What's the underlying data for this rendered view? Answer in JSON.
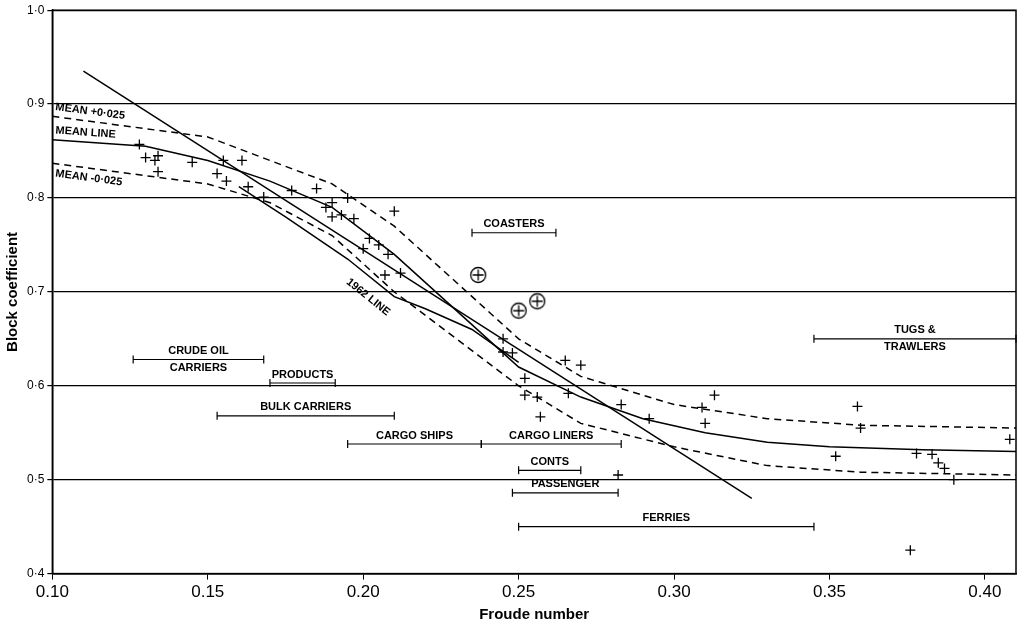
{
  "chart_data": {
    "type": "scatter",
    "xlabel": "Froude number",
    "ylabel": "Block coefficient",
    "xlim": [
      0.1,
      0.41
    ],
    "ylim": [
      0.4,
      1.0
    ],
    "xticks": [
      {
        "value": 0.1,
        "label": "0.10"
      },
      {
        "value": 0.15,
        "label": "0.15"
      },
      {
        "value": 0.2,
        "label": "0.20"
      },
      {
        "value": 0.25,
        "label": "0.25"
      },
      {
        "value": 0.3,
        "label": "0.30"
      },
      {
        "value": 0.35,
        "label": "0.35"
      },
      {
        "value": 0.4,
        "label": "0.40"
      }
    ],
    "yticks": [
      {
        "value": 0.4,
        "label": "0·4"
      },
      {
        "value": 0.5,
        "label": "0·5"
      },
      {
        "value": 0.6,
        "label": "0·6"
      },
      {
        "value": 0.7,
        "label": "0·7"
      },
      {
        "value": 0.8,
        "label": "0·8"
      },
      {
        "value": 0.9,
        "label": "0·9"
      },
      {
        "value": 1.0,
        "label": "1·0"
      }
    ],
    "grid": "y",
    "color": "#000000",
    "series": [
      {
        "type": "scatter",
        "marker": "cross",
        "x": [
          0.128,
          0.13,
          0.133,
          0.134,
          0.134,
          0.145,
          0.153,
          0.155,
          0.156,
          0.161,
          0.163,
          0.168,
          0.177,
          0.185,
          0.188,
          0.19,
          0.19,
          0.193,
          0.195,
          0.197,
          0.2,
          0.202,
          0.205,
          0.207,
          0.208,
          0.21,
          0.212,
          0.245,
          0.245,
          0.248,
          0.252,
          0.252,
          0.256,
          0.257,
          0.265,
          0.266,
          0.27,
          0.282,
          0.283,
          0.292,
          0.309,
          0.31,
          0.313,
          0.352,
          0.359,
          0.36,
          0.376,
          0.378,
          0.383,
          0.385,
          0.387,
          0.39,
          0.408
        ],
        "values": [
          0.857,
          0.843,
          0.84,
          0.845,
          0.828,
          0.838,
          0.826,
          0.84,
          0.818,
          0.84,
          0.812,
          0.801,
          0.808,
          0.81,
          0.79,
          0.78,
          0.795,
          0.782,
          0.8,
          0.778,
          0.746,
          0.757,
          0.75,
          0.718,
          0.74,
          0.786,
          0.72,
          0.65,
          0.636,
          0.635,
          0.608,
          0.59,
          0.588,
          0.567,
          0.627,
          0.592,
          0.622,
          0.505,
          0.58,
          0.565,
          0.577,
          0.56,
          0.59,
          0.525,
          0.578,
          0.555,
          0.425,
          0.528,
          0.527,
          0.518,
          0.512,
          0.5,
          0.543
        ]
      },
      {
        "type": "scatter",
        "marker": "circled_cross",
        "x": [
          0.237,
          0.25,
          0.256
        ],
        "values": [
          0.718,
          0.68,
          0.69
        ]
      },
      {
        "name": "MEAN LINE",
        "type": "line",
        "line_style": "solid",
        "label_at": [
          0.101,
          0.872
        ],
        "x": [
          0.1,
          0.13,
          0.15,
          0.17,
          0.19,
          0.21,
          0.23,
          0.25,
          0.27,
          0.29,
          0.31,
          0.33,
          0.35,
          0.38,
          0.41
        ],
        "values": [
          0.862,
          0.855,
          0.84,
          0.818,
          0.79,
          0.74,
          0.68,
          0.62,
          0.588,
          0.565,
          0.55,
          0.54,
          0.535,
          0.532,
          0.53
        ]
      },
      {
        "name": "MEAN +0·025",
        "type": "line",
        "line_style": "dashed",
        "label_at": [
          0.101,
          0.897
        ],
        "x": [
          0.1,
          0.15,
          0.19,
          0.21,
          0.23,
          0.25,
          0.27,
          0.3,
          0.33,
          0.36,
          0.41
        ],
        "values": [
          0.887,
          0.865,
          0.815,
          0.77,
          0.71,
          0.65,
          0.61,
          0.58,
          0.565,
          0.558,
          0.555
        ]
      },
      {
        "name": "MEAN -0·025",
        "type": "line",
        "line_style": "dashed",
        "label_at": [
          0.101,
          0.826
        ],
        "x": [
          0.1,
          0.15,
          0.17,
          0.19,
          0.21,
          0.23,
          0.25,
          0.27,
          0.3,
          0.33,
          0.36,
          0.41
        ],
        "values": [
          0.837,
          0.815,
          0.795,
          0.76,
          0.7,
          0.65,
          0.6,
          0.56,
          0.535,
          0.515,
          0.508,
          0.505
        ]
      },
      {
        "name": "1962 LINE",
        "type": "line",
        "line_style": "solid",
        "label_at": [
          0.195,
          0.712
        ],
        "x": [
          0.16,
          0.175,
          0.195,
          0.21,
          0.22,
          0.235,
          0.25
        ],
        "values": [
          0.812,
          0.78,
          0.735,
          0.695,
          0.682,
          0.66,
          0.625
        ]
      },
      {
        "type": "line",
        "line_style": "solid",
        "x": [
          0.11,
          0.325
        ],
        "values": [
          0.935,
          0.48
        ]
      }
    ],
    "annotations": [
      {
        "text": [
          "COASTERS"
        ],
        "x_range": [
          0.235,
          0.262
        ],
        "y": 0.763
      },
      {
        "text": [
          "CRUDE OIL",
          "CARRIERS"
        ],
        "x_range": [
          0.126,
          0.168
        ],
        "y": 0.628
      },
      {
        "text": [
          "PRODUCTS"
        ],
        "x_range": [
          0.17,
          0.191
        ],
        "y": 0.603
      },
      {
        "text": [
          "BULK CARRIERS"
        ],
        "x_range": [
          0.153,
          0.21
        ],
        "y": 0.568
      },
      {
        "text": [
          "CARGO SHIPS"
        ],
        "x_range": [
          0.195,
          0.238
        ],
        "y": 0.538
      },
      {
        "text": [
          "CARGO LINERS"
        ],
        "x_range": [
          0.238,
          0.283
        ],
        "y": 0.538
      },
      {
        "text": [
          "CONTS"
        ],
        "x_range": [
          0.25,
          0.27
        ],
        "y": 0.51
      },
      {
        "text": [
          "PASSENGER"
        ],
        "x_range": [
          0.248,
          0.282
        ],
        "y": 0.486
      },
      {
        "text": [
          "FERRIES"
        ],
        "x_range": [
          0.25,
          0.345
        ],
        "y": 0.45
      },
      {
        "text": [
          "TUGS &",
          "TRAWLERS"
        ],
        "x_range": [
          0.345,
          0.41
        ],
        "y": 0.65
      }
    ]
  }
}
